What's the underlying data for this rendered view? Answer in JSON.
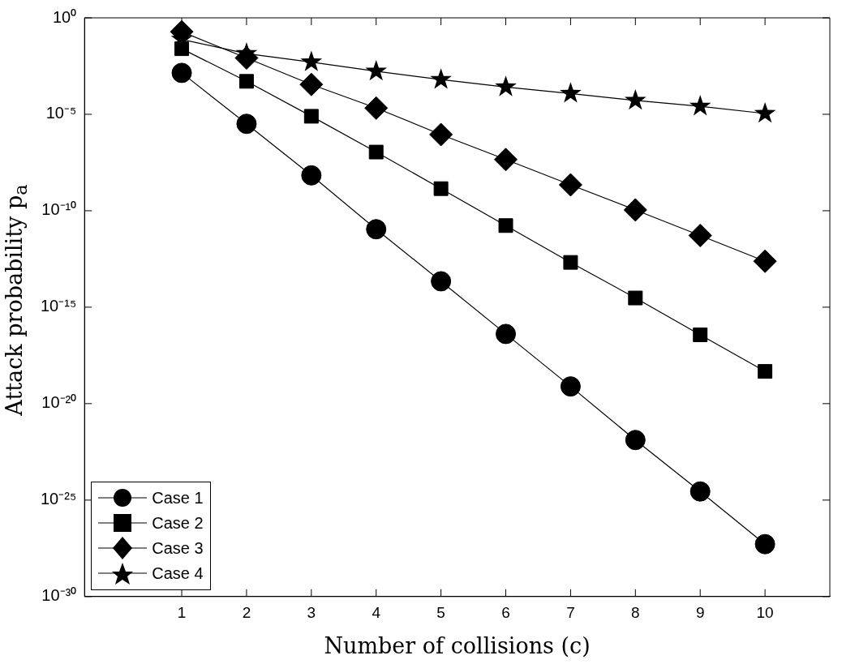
{
  "chart_data": {
    "type": "line",
    "xlabel": "Number of collisions (c)",
    "ylabel": "Attack probability p$_{a}$",
    "x": [
      1,
      2,
      3,
      4,
      5,
      6,
      7,
      8,
      9,
      10
    ],
    "series": [
      {
        "name": "Case 1",
        "color": "#000000",
        "marker": "circle",
        "values": [
          0.0014,
          3.2e-06,
          6.8e-09,
          1.1e-11,
          2.2e-14,
          4.1e-17,
          7.8e-20,
          1.3e-22,
          2.8e-25,
          5.2e-28
        ]
      },
      {
        "name": "Case 2",
        "color": "#000000",
        "marker": "square",
        "values": [
          0.025,
          0.00051,
          7.9e-06,
          1.1e-07,
          1.4e-09,
          1.7e-11,
          2.1e-13,
          3e-15,
          3.7e-17,
          4.7e-19
        ]
      },
      {
        "name": "Case 3",
        "color": "#000000",
        "marker": "diamond",
        "values": [
          0.19,
          0.0083,
          0.00035,
          2.1e-05,
          8.9e-07,
          4.5e-08,
          2.2e-09,
          1.1e-10,
          5.2e-12,
          2.4e-13
        ]
      },
      {
        "name": "Case 4",
        "color": "#000000",
        "marker": "star",
        "values": [
          0.076,
          0.014,
          0.0051,
          0.0017,
          0.00063,
          0.00026,
          0.00012,
          5.2e-05,
          2.6e-05,
          1.1e-05
        ]
      }
    ],
    "log": "y",
    "xlim": [
      -0.5,
      11
    ],
    "xticks": [
      1,
      2,
      3,
      4,
      5,
      6,
      7,
      8,
      9,
      10
    ],
    "ylim": [
      1e-30,
      1
    ],
    "yticks": [
      {
        "value": 1e-30,
        "label": "10⁻³⁰"
      },
      {
        "value": 1e-25,
        "label": "10⁻²⁵"
      },
      {
        "value": 1e-20,
        "label": "10⁻²⁰"
      },
      {
        "value": 1e-15,
        "label": "10⁻¹⁵"
      },
      {
        "value": 1e-10,
        "label": "10⁻¹⁰"
      },
      {
        "value": 1e-05,
        "label": "10⁻⁵"
      },
      {
        "value": 1,
        "label": "10⁰"
      }
    ],
    "grid": false,
    "legend": "bottom left",
    "line_style": "solid"
  }
}
